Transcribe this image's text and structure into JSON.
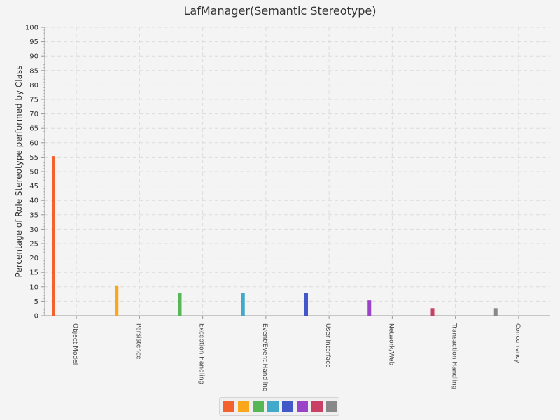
{
  "chart_data": {
    "type": "bar",
    "title": "LafManager(Semantic Stereotype)",
    "xlabel": "",
    "ylabel": "Percentage of Role Stereotype performed by Class",
    "ylim": [
      0,
      100
    ],
    "y_ticks": [
      "0",
      "5",
      "10",
      "15",
      "20",
      "25",
      "30",
      "35",
      "40",
      "45",
      "50",
      "55",
      "60",
      "65",
      "70",
      "75",
      "80",
      "85",
      "90",
      "95",
      "100"
    ],
    "grid": true,
    "categories": [
      "Object Model",
      "Persistence",
      "Exception Handling",
      "Event/Event Handling",
      "User Interface",
      "Network/Web",
      "Transaction Handling",
      "Concurrency"
    ],
    "values": [
      55.3,
      10.5,
      7.9,
      7.9,
      7.9,
      5.3,
      2.6,
      2.6
    ],
    "colors": [
      "#f3622d",
      "#fba71b",
      "#57b757",
      "#41a9c9",
      "#4258c9",
      "#9a42c8",
      "#c84164",
      "#888888"
    ],
    "legend_placement": "bottom-center"
  }
}
